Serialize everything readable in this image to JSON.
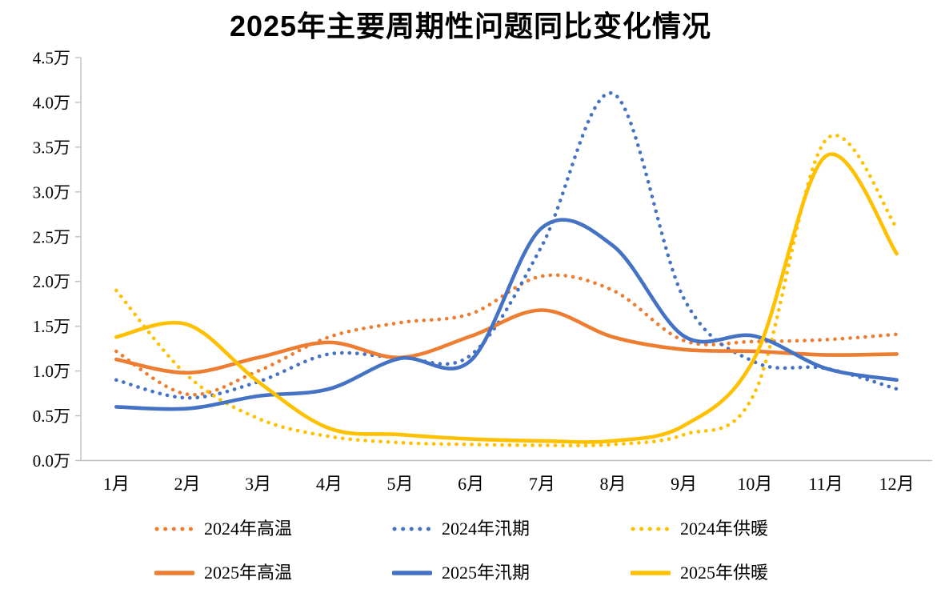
{
  "chart_data": {
    "type": "line",
    "title": "2025年主要周期性问题同比变化情况",
    "categories": [
      "1月",
      "2月",
      "3月",
      "4月",
      "5月",
      "6月",
      "7月",
      "8月",
      "9月",
      "10月",
      "11月",
      "12月"
    ],
    "y_axis": {
      "min": 0,
      "max": 4.5,
      "step": 0.5,
      "unit": "万",
      "tick_labels_top_down": [
        "4.5万",
        "4.0万",
        "3.5万",
        "3.0万",
        "2.5万",
        "2.0万",
        "1.5万",
        "1.0万",
        "0.5万",
        "0.0万"
      ]
    },
    "grid": false,
    "legend_position": "bottom",
    "axis_color": "#BFBFBF",
    "text_color": "#000000",
    "series": [
      {
        "name": "2024年高温",
        "color": "#ED7D31",
        "style": "dotted",
        "values": [
          1.22,
          0.74,
          1.0,
          1.38,
          1.54,
          1.64,
          2.06,
          1.9,
          1.34,
          1.33,
          1.35,
          1.41
        ]
      },
      {
        "name": "2024年汛期",
        "color": "#4472C4",
        "style": "dotted",
        "values": [
          0.9,
          0.7,
          0.88,
          1.19,
          1.15,
          1.18,
          2.4,
          4.1,
          1.81,
          1.1,
          1.03,
          0.8
        ]
      },
      {
        "name": "2024年供暖",
        "color": "#FFC000",
        "style": "dotted",
        "values": [
          1.9,
          0.95,
          0.47,
          0.27,
          0.2,
          0.18,
          0.17,
          0.18,
          0.29,
          0.76,
          3.58,
          2.6
        ]
      },
      {
        "name": "2025年高温",
        "color": "#ED7D31",
        "style": "solid",
        "values": [
          1.13,
          0.98,
          1.15,
          1.32,
          1.15,
          1.39,
          1.68,
          1.38,
          1.24,
          1.22,
          1.18,
          1.19
        ]
      },
      {
        "name": "2025年汛期",
        "color": "#4472C4",
        "style": "solid",
        "values": [
          0.6,
          0.58,
          0.72,
          0.8,
          1.14,
          1.12,
          2.6,
          2.4,
          1.39,
          1.39,
          1.03,
          0.9
        ]
      },
      {
        "name": "2025年供暖",
        "color": "#FFC000",
        "style": "solid",
        "values": [
          1.38,
          1.52,
          0.88,
          0.36,
          0.29,
          0.24,
          0.22,
          0.22,
          0.39,
          1.15,
          3.4,
          2.31
        ]
      }
    ]
  }
}
